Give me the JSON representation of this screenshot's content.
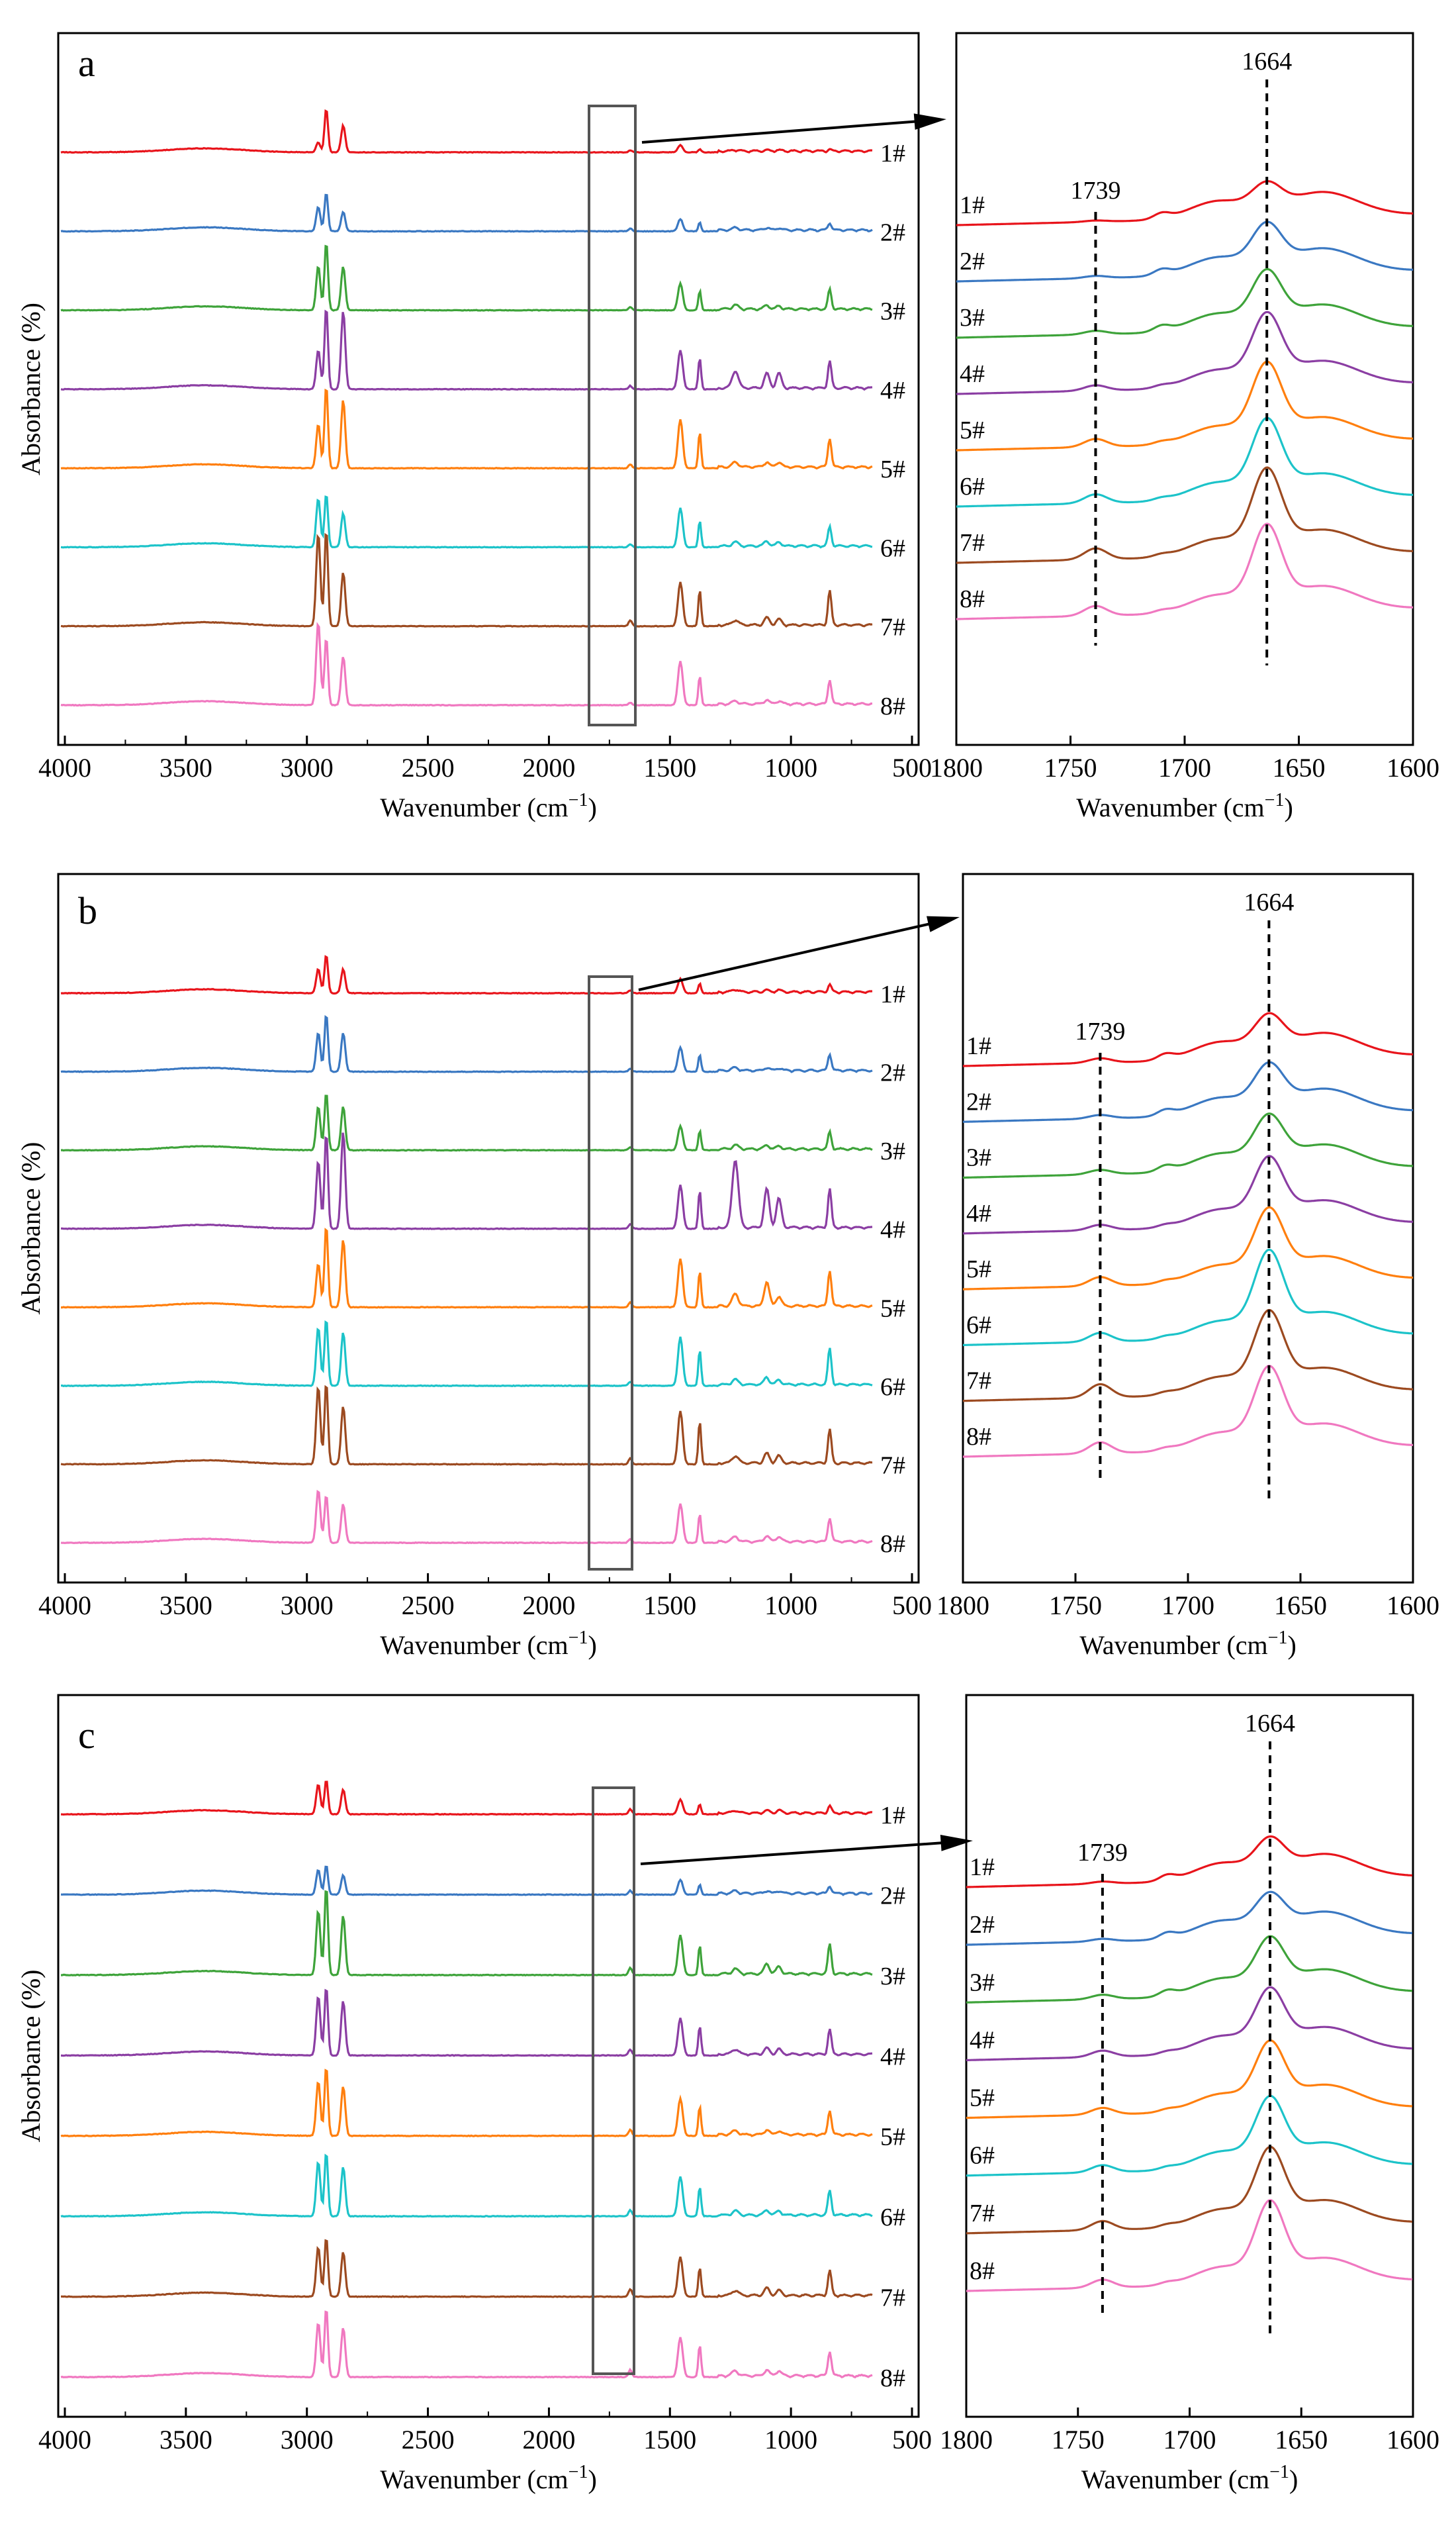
{
  "figure": {
    "panels": [
      "a",
      "b",
      "c"
    ],
    "ylabel": "Absorbance (%)",
    "xlabel_main": "Wavenumber (cm",
    "xlabel_sup": "−1",
    "xlabel_end": ")",
    "series_labels": [
      "1#",
      "2#",
      "3#",
      "4#",
      "5#",
      "6#",
      "7#",
      "8#"
    ],
    "series_colors": [
      "#e8141b",
      "#3a78c2",
      "#3ea33a",
      "#8b3ea3",
      "#ff7f0e",
      "#1cc3c9",
      "#9c4a20",
      "#f078c0"
    ],
    "peak_labels": [
      "1739",
      "1664"
    ],
    "main_x_ticks": [
      "4000",
      "3500",
      "3000",
      "2500",
      "2000",
      "1500",
      "1000",
      "500"
    ],
    "zoom_x_ticks": [
      "1800",
      "1750",
      "1700",
      "1650",
      "1600"
    ]
  },
  "chart_data": [
    {
      "type": "line",
      "panel": "a",
      "view": "full",
      "title": "",
      "xlabel": "Wavenumber (cm−1)",
      "ylabel": "Absorbance (%)",
      "xlim": [
        4000,
        500
      ],
      "x_reversed": true,
      "zoom_window": [
        1760,
        1610
      ],
      "peak_positions": [
        2953,
        2920,
        2850,
        1664,
        1457,
        1377,
        1230,
        1100,
        1050,
        840
      ],
      "series": [
        {
          "name": "1#",
          "baseline": 0,
          "peak_heights": [
            0.2,
            0.9,
            0.55,
            0.04,
            0.15,
            0.06,
            0.02,
            0.02,
            0.02,
            0.03
          ]
        },
        {
          "name": "2#",
          "baseline": 1,
          "peak_heights": [
            0.5,
            0.8,
            0.4,
            0.06,
            0.25,
            0.18,
            0.05,
            0.05,
            0.04,
            0.15
          ]
        },
        {
          "name": "3#",
          "baseline": 2,
          "peak_heights": [
            0.9,
            1.4,
            0.9,
            0.06,
            0.55,
            0.4,
            0.08,
            0.08,
            0.06,
            0.4
          ]
        },
        {
          "name": "4#",
          "baseline": 3,
          "peak_heights": [
            0.8,
            1.7,
            1.6,
            0.07,
            0.8,
            0.65,
            0.35,
            0.3,
            0.3,
            0.55
          ]
        },
        {
          "name": "5#",
          "baseline": 4,
          "peak_heights": [
            0.9,
            1.7,
            1.4,
            0.08,
            1.0,
            0.75,
            0.1,
            0.1,
            0.1,
            0.6
          ]
        },
        {
          "name": "6#",
          "baseline": 5,
          "peak_heights": [
            1.0,
            1.1,
            0.7,
            0.06,
            0.8,
            0.55,
            0.08,
            0.1,
            0.08,
            0.4
          ]
        },
        {
          "name": "7#",
          "baseline": 6,
          "peak_heights": [
            1.9,
            2.0,
            1.1,
            0.12,
            0.9,
            0.75,
            0.1,
            0.15,
            0.12,
            0.7
          ]
        },
        {
          "name": "8#",
          "baseline": 7,
          "peak_heights": [
            1.7,
            1.4,
            1.0,
            0.05,
            0.9,
            0.6,
            0.06,
            0.08,
            0.06,
            0.5
          ]
        }
      ]
    },
    {
      "type": "line",
      "panel": "a",
      "view": "zoom",
      "xlabel": "Wavenumber (cm−1)",
      "xlim": [
        1800,
        1600
      ],
      "x_reversed": true,
      "reference_lines": [
        1739,
        1664
      ],
      "series": [
        {
          "name": "1#",
          "peak_1739": 0.03,
          "peak_1664": 0.55
        },
        {
          "name": "2#",
          "peak_1739": 0.05,
          "peak_1664": 0.9
        },
        {
          "name": "3#",
          "peak_1739": 0.08,
          "peak_1664": 1.1
        },
        {
          "name": "4#",
          "peak_1739": 0.12,
          "peak_1664": 1.4
        },
        {
          "name": "5#",
          "peak_1739": 0.18,
          "peak_1664": 1.55
        },
        {
          "name": "6#",
          "peak_1739": 0.2,
          "peak_1664": 1.55
        },
        {
          "name": "7#",
          "peak_1739": 0.25,
          "peak_1664": 1.7
        },
        {
          "name": "8#",
          "peak_1739": 0.22,
          "peak_1664": 1.7
        }
      ]
    },
    {
      "type": "line",
      "panel": "b",
      "view": "full",
      "xlabel": "Wavenumber (cm−1)",
      "ylabel": "Absorbance (%)",
      "xlim": [
        4000,
        500
      ],
      "x_reversed": true,
      "zoom_window": [
        1760,
        1610
      ],
      "peak_positions": [
        2953,
        2920,
        2850,
        1664,
        1457,
        1377,
        1230,
        1100,
        1050,
        840
      ],
      "series": [
        {
          "name": "1#",
          "baseline": 0,
          "peak_heights": [
            0.5,
            0.8,
            0.5,
            0.06,
            0.3,
            0.2,
            0.05,
            0.04,
            0.04,
            0.15
          ]
        },
        {
          "name": "2#",
          "baseline": 1,
          "peak_heights": [
            0.8,
            1.2,
            0.8,
            0.06,
            0.5,
            0.35,
            0.06,
            0.06,
            0.05,
            0.35
          ]
        },
        {
          "name": "3#",
          "baseline": 2,
          "peak_heights": [
            0.9,
            1.2,
            0.9,
            0.06,
            0.5,
            0.4,
            0.08,
            0.08,
            0.06,
            0.35
          ]
        },
        {
          "name": "4#",
          "baseline": 3,
          "peak_heights": [
            1.4,
            2.0,
            2.0,
            0.1,
            0.9,
            0.8,
            1.4,
            0.8,
            0.6,
            0.8
          ]
        },
        {
          "name": "5#",
          "baseline": 4,
          "peak_heights": [
            0.9,
            1.7,
            1.4,
            0.1,
            1.0,
            0.75,
            0.25,
            0.5,
            0.2,
            0.75
          ]
        },
        {
          "name": "6#",
          "baseline": 5,
          "peak_heights": [
            1.2,
            1.4,
            1.1,
            0.08,
            1.0,
            0.75,
            0.1,
            0.15,
            0.1,
            0.75
          ]
        },
        {
          "name": "7#",
          "baseline": 6,
          "peak_heights": [
            1.6,
            1.7,
            1.2,
            0.12,
            1.1,
            0.9,
            0.15,
            0.2,
            0.15,
            0.7
          ]
        },
        {
          "name": "8#",
          "baseline": 7,
          "peak_heights": [
            1.1,
            1.0,
            0.8,
            0.08,
            0.8,
            0.6,
            0.1,
            0.12,
            0.1,
            0.5
          ]
        }
      ]
    },
    {
      "type": "line",
      "panel": "b",
      "view": "zoom",
      "xlabel": "Wavenumber (cm−1)",
      "xlim": [
        1800,
        1600
      ],
      "x_reversed": true,
      "reference_lines": [
        1739,
        1664
      ],
      "series": [
        {
          "name": "1#",
          "peak_1739": 0.1,
          "peak_1664": 0.75
        },
        {
          "name": "2#",
          "peak_1739": 0.08,
          "peak_1664": 0.9
        },
        {
          "name": "3#",
          "peak_1739": 0.1,
          "peak_1664": 1.0
        },
        {
          "name": "4#",
          "peak_1739": 0.12,
          "peak_1664": 1.3
        },
        {
          "name": "5#",
          "peak_1739": 0.2,
          "peak_1664": 1.4
        },
        {
          "name": "6#",
          "peak_1739": 0.2,
          "peak_1664": 1.7
        },
        {
          "name": "7#",
          "peak_1739": 0.3,
          "peak_1664": 1.6
        },
        {
          "name": "8#",
          "peak_1739": 0.25,
          "peak_1664": 1.6
        }
      ]
    },
    {
      "type": "line",
      "panel": "c",
      "view": "full",
      "xlabel": "Wavenumber (cm−1)",
      "ylabel": "Absorbance (%)",
      "xlim": [
        4000,
        500
      ],
      "x_reversed": true,
      "zoom_window": [
        1760,
        1610
      ],
      "peak_positions": [
        2953,
        2920,
        2850,
        1664,
        1457,
        1377,
        1230,
        1100,
        1050,
        840
      ],
      "series": [
        {
          "name": "1#",
          "baseline": 0,
          "peak_heights": [
            0.6,
            0.7,
            0.5,
            0.1,
            0.3,
            0.2,
            0.05,
            0.05,
            0.05,
            0.15
          ]
        },
        {
          "name": "2#",
          "baseline": 1,
          "peak_heights": [
            0.5,
            0.6,
            0.4,
            0.08,
            0.3,
            0.2,
            0.05,
            0.05,
            0.05,
            0.15
          ]
        },
        {
          "name": "3#",
          "baseline": 2,
          "peak_heights": [
            1.3,
            1.8,
            1.2,
            0.15,
            0.8,
            0.6,
            0.1,
            0.2,
            0.15,
            0.6
          ]
        },
        {
          "name": "4#",
          "baseline": 3,
          "peak_heights": [
            1.2,
            1.4,
            1.1,
            0.12,
            0.75,
            0.6,
            0.1,
            0.12,
            0.1,
            0.5
          ]
        },
        {
          "name": "5#",
          "baseline": 4,
          "peak_heights": [
            1.1,
            1.4,
            1.0,
            0.12,
            0.75,
            0.6,
            0.08,
            0.1,
            0.08,
            0.5
          ]
        },
        {
          "name": "6#",
          "baseline": 5,
          "peak_heights": [
            1.1,
            1.3,
            1.0,
            0.12,
            0.8,
            0.6,
            0.08,
            0.1,
            0.08,
            0.5
          ]
        },
        {
          "name": "7#",
          "baseline": 6,
          "peak_heights": [
            1.0,
            1.2,
            0.9,
            0.15,
            0.8,
            0.6,
            0.1,
            0.15,
            0.1,
            0.5
          ]
        },
        {
          "name": "8#",
          "baseline": 7,
          "peak_heights": [
            1.1,
            1.4,
            1.0,
            0.15,
            0.8,
            0.65,
            0.1,
            0.12,
            0.1,
            0.5
          ]
        }
      ]
    },
    {
      "type": "line",
      "panel": "c",
      "view": "zoom",
      "xlabel": "Wavenumber (cm−1)",
      "xlim": [
        1800,
        1600
      ],
      "x_reversed": true,
      "reference_lines": [
        1739,
        1664
      ],
      "series": [
        {
          "name": "1#",
          "peak_1739": 0.05,
          "peak_1664": 0.7
        },
        {
          "name": "2#",
          "peak_1739": 0.06,
          "peak_1664": 0.75
        },
        {
          "name": "3#",
          "peak_1739": 0.1,
          "peak_1664": 1.05
        },
        {
          "name": "4#",
          "peak_1739": 0.14,
          "peak_1664": 1.2
        },
        {
          "name": "5#",
          "peak_1739": 0.15,
          "peak_1664": 1.3
        },
        {
          "name": "6#",
          "peak_1739": 0.16,
          "peak_1664": 1.35
        },
        {
          "name": "7#",
          "peak_1739": 0.2,
          "peak_1664": 1.5
        },
        {
          "name": "8#",
          "peak_1739": 0.18,
          "peak_1664": 1.6
        }
      ]
    }
  ]
}
